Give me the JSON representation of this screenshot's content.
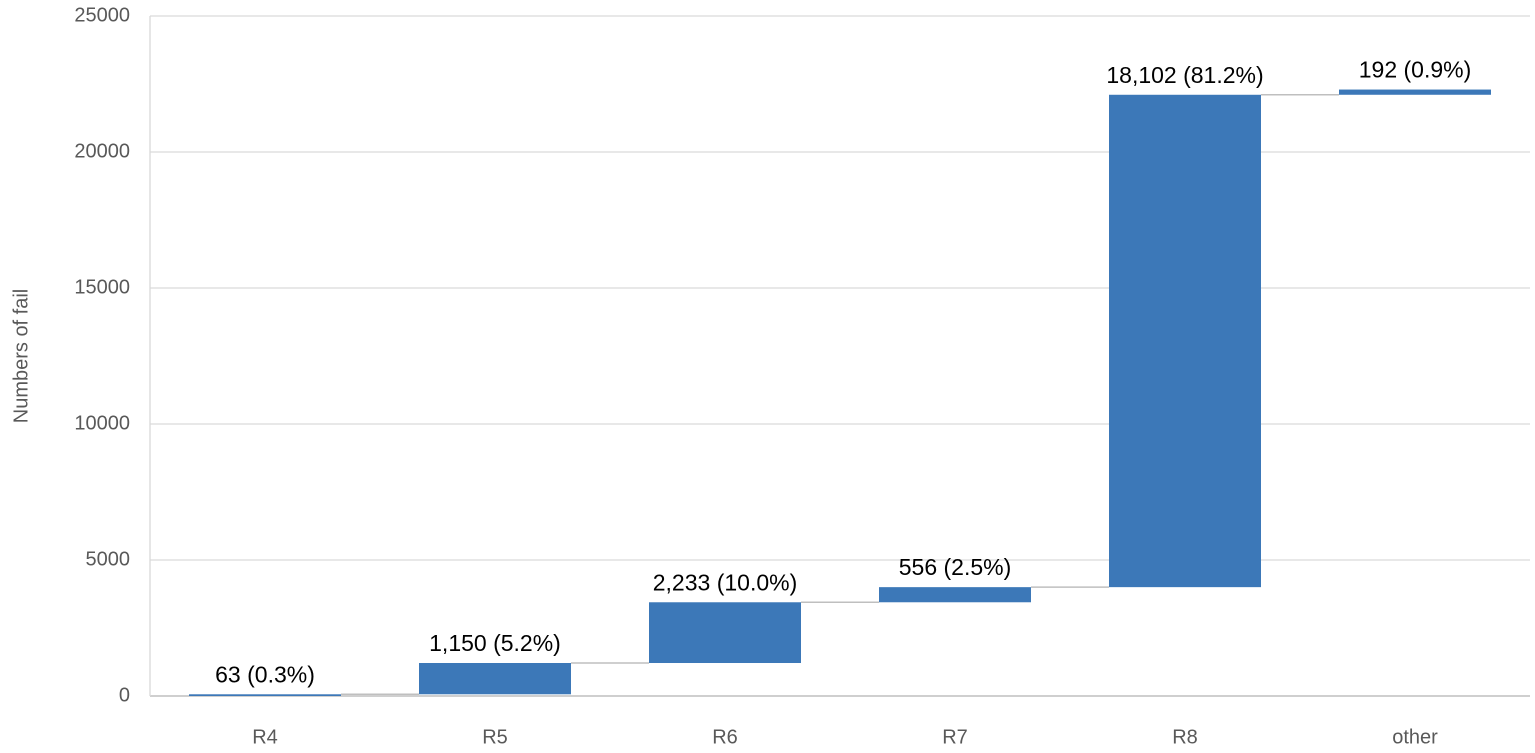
{
  "chart_data": {
    "type": "waterfall",
    "y_label": "Numbers of fail",
    "categories": [
      "R4",
      "R5",
      "R6",
      "R7",
      "R8",
      "other"
    ],
    "values": [
      63,
      1150,
      2233,
      556,
      18102,
      192
    ],
    "value_labels": [
      "63 (0.3%)",
      "1,150 (5.2%)",
      "2,233 (10.0%)",
      "556 (2.5%)",
      "18,102 (81.2%)",
      "192 (0.9%)"
    ],
    "color": "#3c78b8",
    "ylim": [
      0,
      25000
    ],
    "yticks": [
      0,
      5000,
      10000,
      15000,
      20000,
      25000
    ],
    "grid": true
  }
}
